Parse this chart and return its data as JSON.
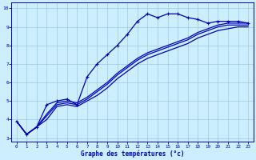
{
  "xlabel": "Graphe des températures (°c)",
  "bg_color": "#cceeff",
  "line_color": "#0000bb",
  "grid_color": "#99ccdd",
  "xlim": [
    -0.5,
    23.5
  ],
  "ylim": [
    2.8,
    10.3
  ],
  "xticks": [
    0,
    1,
    2,
    3,
    4,
    5,
    6,
    7,
    8,
    9,
    10,
    11,
    12,
    13,
    14,
    15,
    16,
    17,
    18,
    19,
    20,
    21,
    22,
    23
  ],
  "yticks": [
    3,
    4,
    5,
    6,
    7,
    8,
    9,
    10
  ],
  "line1_x": [
    0,
    1,
    2,
    3,
    4,
    5,
    6,
    7,
    8,
    9,
    10,
    11,
    12,
    13,
    14,
    15,
    16,
    17,
    18,
    19,
    20,
    21,
    22,
    23
  ],
  "line1_y": [
    3.9,
    3.2,
    3.6,
    4.8,
    5.0,
    5.1,
    4.8,
    6.3,
    7.0,
    7.5,
    8.0,
    8.6,
    9.3,
    9.7,
    9.5,
    9.7,
    9.7,
    9.5,
    9.4,
    9.2,
    9.3,
    9.3,
    9.3,
    9.2
  ],
  "line2_x": [
    0,
    1,
    2,
    3,
    4,
    5,
    6,
    7,
    8,
    9,
    10,
    11,
    12,
    13,
    14,
    15,
    16,
    17,
    18,
    19,
    20,
    21,
    22,
    23
  ],
  "line2_y": [
    3.9,
    3.2,
    3.6,
    4.3,
    4.9,
    5.0,
    4.9,
    5.2,
    5.6,
    6.0,
    6.5,
    6.9,
    7.3,
    7.6,
    7.8,
    8.0,
    8.2,
    8.4,
    8.7,
    8.9,
    9.1,
    9.2,
    9.2,
    9.2
  ],
  "line3_x": [
    0,
    1,
    2,
    3,
    4,
    5,
    6,
    7,
    8,
    9,
    10,
    11,
    12,
    13,
    14,
    15,
    16,
    17,
    18,
    19,
    20,
    21,
    22,
    23
  ],
  "line3_y": [
    3.9,
    3.2,
    3.6,
    4.2,
    4.8,
    4.9,
    4.8,
    5.1,
    5.5,
    5.9,
    6.4,
    6.8,
    7.2,
    7.5,
    7.7,
    7.9,
    8.1,
    8.3,
    8.6,
    8.8,
    9.0,
    9.1,
    9.1,
    9.1
  ],
  "line4_x": [
    0,
    1,
    2,
    3,
    4,
    5,
    6,
    7,
    8,
    9,
    10,
    11,
    12,
    13,
    14,
    15,
    16,
    17,
    18,
    19,
    20,
    21,
    22,
    23
  ],
  "line4_y": [
    3.9,
    3.2,
    3.6,
    4.0,
    4.7,
    4.8,
    4.7,
    5.0,
    5.3,
    5.7,
    6.2,
    6.6,
    7.0,
    7.3,
    7.5,
    7.7,
    7.9,
    8.1,
    8.4,
    8.6,
    8.8,
    8.9,
    9.0,
    9.0
  ]
}
